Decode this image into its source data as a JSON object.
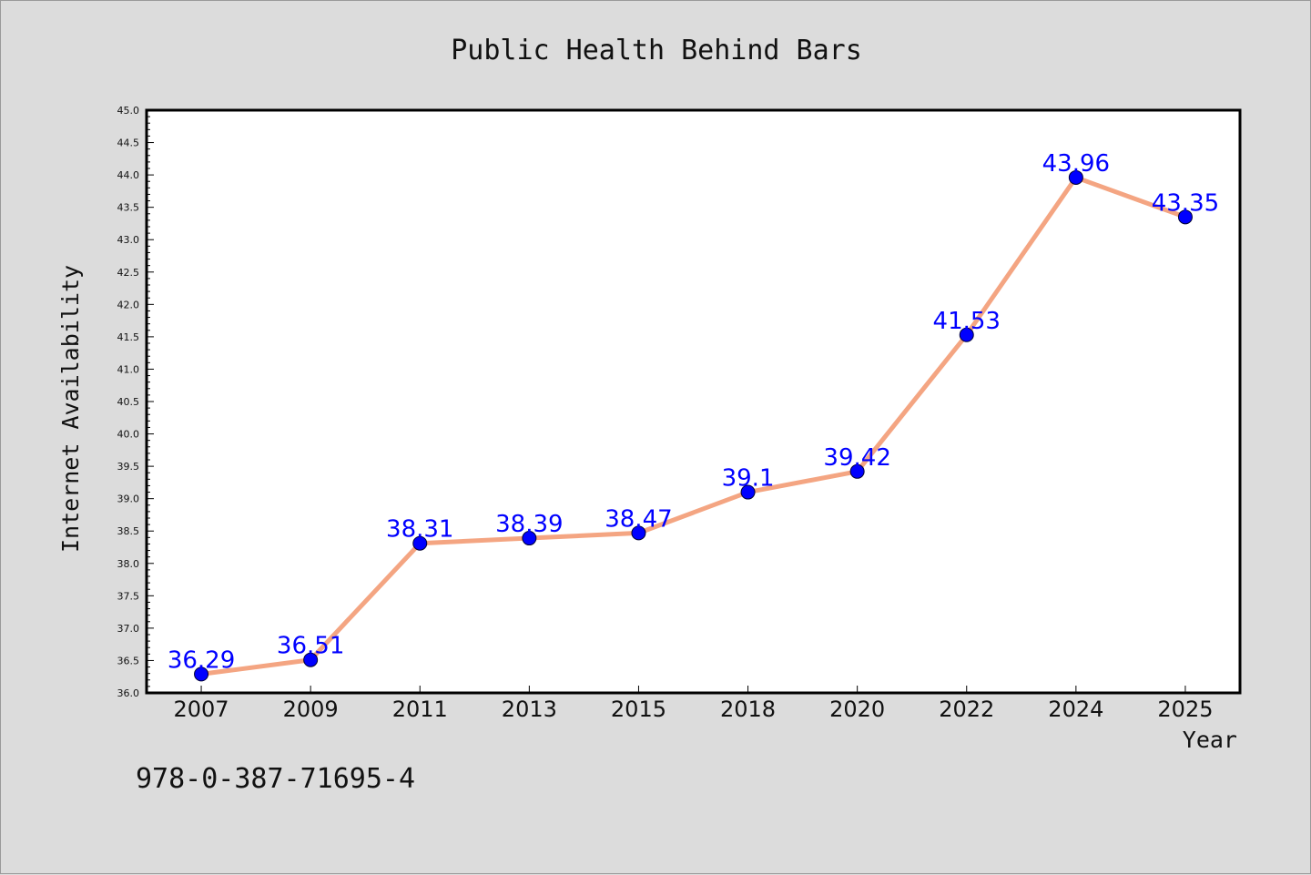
{
  "chart_data": {
    "type": "line",
    "title": "Public Health Behind Bars",
    "xlabel": "Year",
    "ylabel": "Internet Availability",
    "categories": [
      "2007",
      "2009",
      "2011",
      "2013",
      "2015",
      "2018",
      "2020",
      "2022",
      "2024",
      "2025"
    ],
    "series": [
      {
        "values": [
          36.29,
          36.51,
          38.31,
          38.39,
          38.47,
          39.1,
          39.42,
          41.53,
          43.96,
          43.35
        ],
        "data_labels": [
          "36.29",
          "36.51",
          "38.31",
          "38.39",
          "38.47",
          "39.1",
          "39.42",
          "41.53",
          "43.96",
          "43.35"
        ],
        "line_color": "#f4a582",
        "marker_color": "#0000ff",
        "label_color": "#0000ff"
      }
    ],
    "ylim": [
      36.0,
      45.0
    ],
    "yticks": [
      "36.0",
      "36.5",
      "37.0",
      "37.5",
      "38.0",
      "38.5",
      "39.0",
      "39.5",
      "40.0",
      "40.5",
      "41.0",
      "41.5",
      "42.0",
      "42.5",
      "43.0",
      "43.5",
      "44.0",
      "44.5",
      "45.0"
    ],
    "grid": false,
    "legend": "none"
  },
  "footer": {
    "isbn": "978-0-387-71695-4"
  },
  "colors": {
    "background": "#dcdcdc",
    "plot_background": "#ffffff"
  }
}
